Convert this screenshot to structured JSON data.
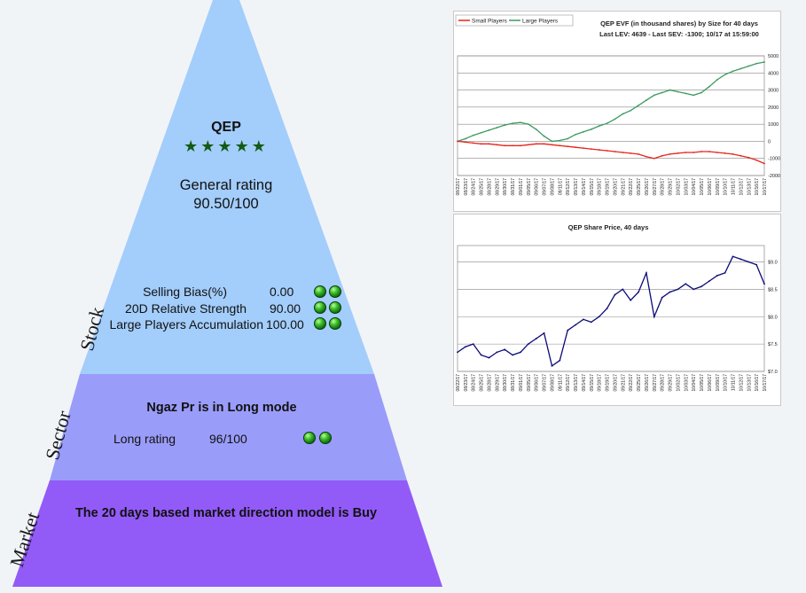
{
  "stock": {
    "ticker": "QEP",
    "stars": 5,
    "general_rating_label": "General rating",
    "general_rating_value": "90.50/100",
    "metrics": [
      {
        "name": "Selling Bias(%)",
        "value": "0.00",
        "dots": 2
      },
      {
        "name": "20D Relative Strength",
        "value": "90.00",
        "dots": 2
      },
      {
        "name": "Large Players Accumulation",
        "value": "100.00",
        "dots": 2
      }
    ]
  },
  "sector": {
    "title": "Ngaz Pr is in Long mode",
    "long_rating_label": "Long rating",
    "long_rating_value": "96/100",
    "dots": 2
  },
  "market": {
    "text": "The 20 days based market direction model is Buy"
  },
  "side_labels": {
    "stock": "Stock",
    "sector": "Sector",
    "market": "Market"
  },
  "colors": {
    "stock_band": "#a3cdfb",
    "sector_band": "#9a9cf9",
    "market_band": "#925bf7",
    "small_players": "#e8231c",
    "large_players": "#3d9a62",
    "price_line": "#0a0a7a"
  },
  "icons": {
    "star": "star-icon",
    "dot": "green-dot-icon"
  },
  "chart_data": [
    {
      "type": "line",
      "title": "QEP EVF (in thousand shares) by Size for 40 days",
      "subtitle": "Last LEV: 4639 - Last SEV: -1300; 10/17 at 15:59:00",
      "legend": [
        "Small Players",
        "Large Players"
      ],
      "legend_position": "top-left",
      "yticks": [
        "5000",
        "4000",
        "3000",
        "2000",
        "1000",
        "0",
        "-1000",
        "-2000"
      ],
      "ylim": [
        -2000,
        5000
      ],
      "grid": true,
      "x": [
        "08/22/17",
        "08/23/17",
        "08/24/17",
        "08/25/17",
        "08/28/17",
        "08/29/17",
        "08/30/17",
        "08/31/17",
        "09/01/17",
        "09/05/17",
        "09/06/17",
        "09/07/17",
        "09/08/17",
        "09/11/17",
        "09/12/17",
        "09/13/17",
        "09/14/17",
        "09/15/17",
        "09/18/17",
        "09/19/17",
        "09/20/17",
        "09/21/17",
        "09/22/17",
        "09/25/17",
        "09/26/17",
        "09/27/17",
        "09/28/17",
        "09/29/17",
        "10/02/17",
        "10/03/17",
        "10/04/17",
        "10/05/17",
        "10/06/17",
        "10/09/17",
        "10/10/17",
        "10/11/17",
        "10/12/17",
        "10/13/17",
        "10/16/17",
        "10/17/17"
      ],
      "series": [
        {
          "name": "Large Players",
          "values": [
            0,
            150,
            350,
            500,
            650,
            800,
            950,
            1050,
            1100,
            1000,
            700,
            300,
            0,
            50,
            150,
            400,
            550,
            700,
            900,
            1050,
            1300,
            1600,
            1800,
            2100,
            2400,
            2700,
            2850,
            3000,
            2900,
            2800,
            2700,
            2850,
            3200,
            3600,
            3900,
            4100,
            4250,
            4400,
            4550,
            4639
          ]
        },
        {
          "name": "Small Players",
          "values": [
            0,
            -50,
            -100,
            -150,
            -150,
            -200,
            -250,
            -250,
            -250,
            -200,
            -150,
            -150,
            -200,
            -250,
            -300,
            -350,
            -400,
            -450,
            -500,
            -550,
            -600,
            -650,
            -700,
            -750,
            -900,
            -1000,
            -850,
            -750,
            -700,
            -650,
            -650,
            -600,
            -600,
            -650,
            -700,
            -750,
            -850,
            -950,
            -1100,
            -1300
          ]
        }
      ]
    },
    {
      "type": "line",
      "title": "QEP Share Price, 40 days",
      "yticks": [
        "$9.0",
        "$8.5",
        "$8.0",
        "$7.5",
        "$7.0"
      ],
      "ylim": [
        7.0,
        9.3
      ],
      "grid": true,
      "x": [
        "08/22/17",
        "08/23/17",
        "08/24/17",
        "08/25/17",
        "08/28/17",
        "08/29/17",
        "08/30/17",
        "08/31/17",
        "09/01/17",
        "09/05/17",
        "09/06/17",
        "09/07/17",
        "09/08/17",
        "09/11/17",
        "09/12/17",
        "09/13/17",
        "09/14/17",
        "09/15/17",
        "09/18/17",
        "09/19/17",
        "09/20/17",
        "09/21/17",
        "09/22/17",
        "09/25/17",
        "09/26/17",
        "09/27/17",
        "09/28/17",
        "09/29/17",
        "10/02/17",
        "10/03/17",
        "10/04/17",
        "10/05/17",
        "10/06/17",
        "10/09/17",
        "10/10/17",
        "10/11/17",
        "10/12/17",
        "10/13/17",
        "10/16/17",
        "10/17/17"
      ],
      "series": [
        {
          "name": "Price",
          "values": [
            7.35,
            7.45,
            7.5,
            7.3,
            7.25,
            7.35,
            7.4,
            7.3,
            7.35,
            7.5,
            7.6,
            7.7,
            7.1,
            7.2,
            7.75,
            7.85,
            7.95,
            7.9,
            8.0,
            8.15,
            8.4,
            8.5,
            8.3,
            8.45,
            8.8,
            8.0,
            8.35,
            8.45,
            8.5,
            8.6,
            8.5,
            8.55,
            8.65,
            8.75,
            8.8,
            9.1,
            9.05,
            9.0,
            8.95,
            8.6
          ]
        }
      ]
    }
  ]
}
